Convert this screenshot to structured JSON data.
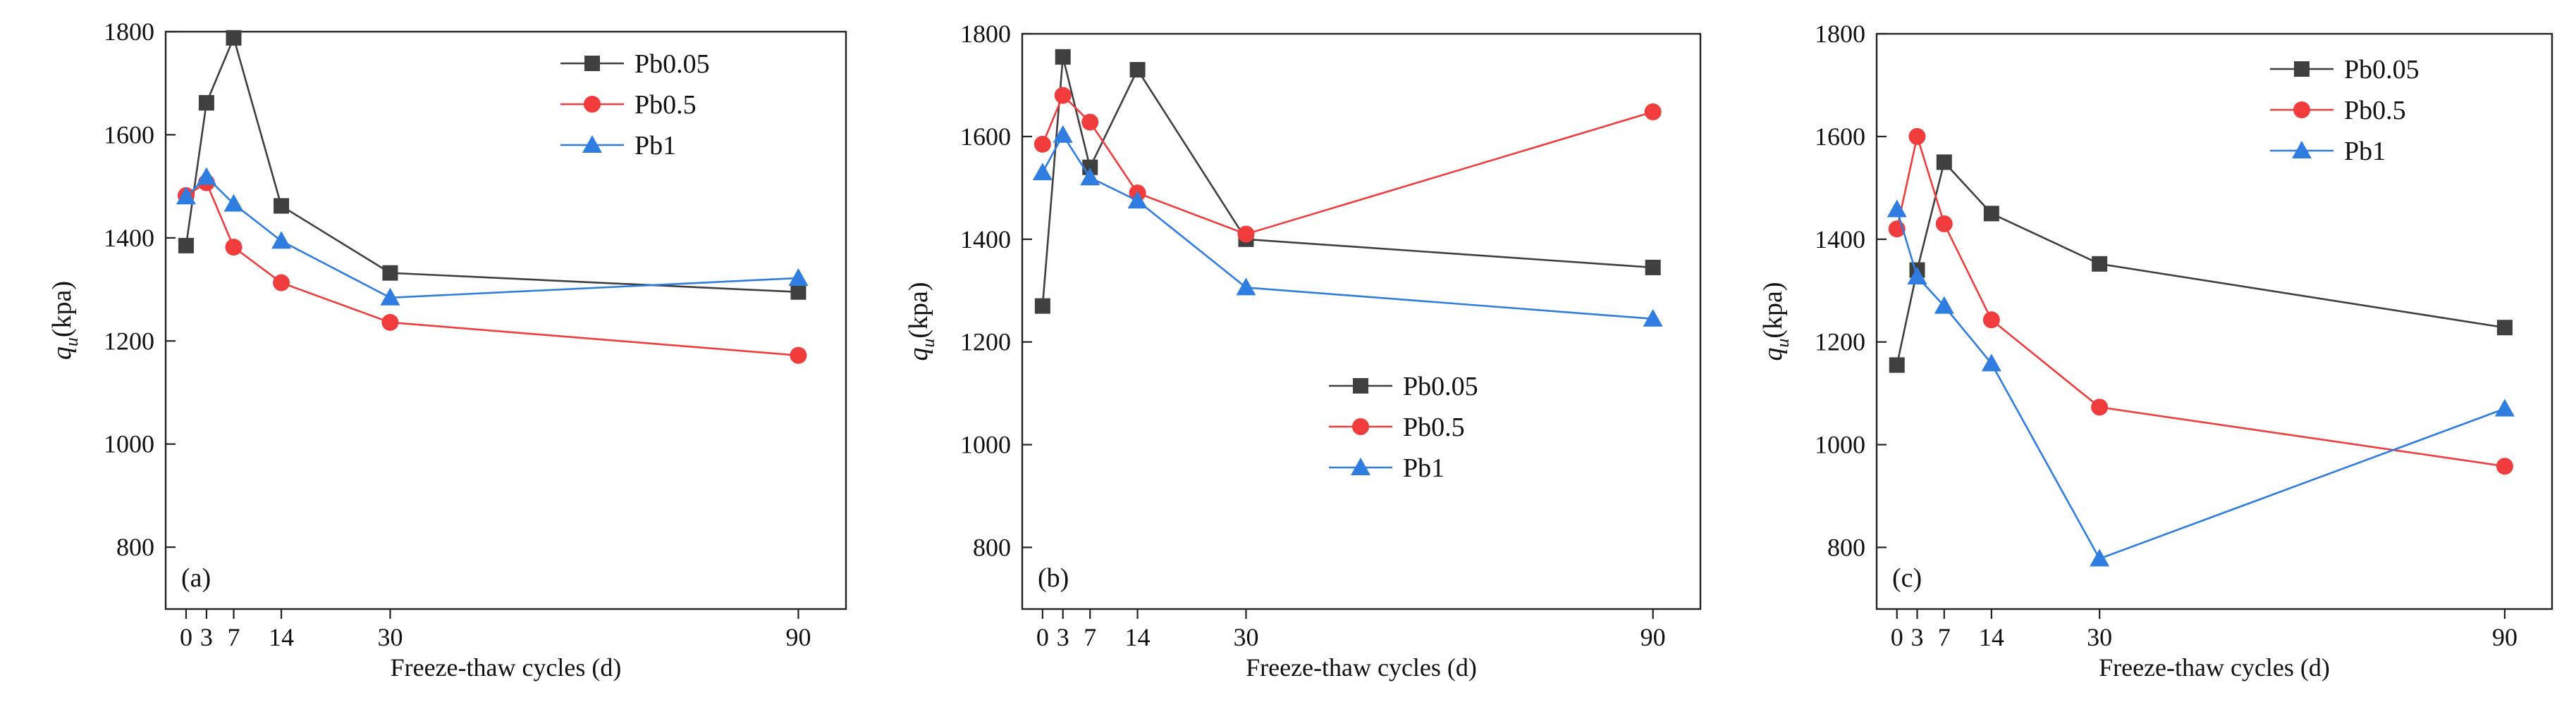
{
  "chart_data": [
    {
      "type": "line",
      "panel_label": "(a)",
      "xlabel": "Freeze-thaw cycles (d)",
      "ylabel_main": "q",
      "ylabel_sub": "u",
      "ylabel_unit": "(kpa)",
      "x": [
        0,
        3,
        7,
        14,
        30,
        90
      ],
      "x_ticks": [
        0,
        3,
        7,
        14,
        30,
        90
      ],
      "xlim": [
        -3,
        97
      ],
      "ylim": [
        680,
        1800
      ],
      "y_ticks": [
        800,
        1000,
        1200,
        1400,
        1600,
        1800
      ],
      "legend_position": "top-right",
      "series": [
        {
          "name": "Pb0.05",
          "color": "#3f3f3f",
          "marker": "square",
          "values": [
            1385,
            1662,
            1788,
            1462,
            1332,
            1295
          ]
        },
        {
          "name": "Pb0.5",
          "color": "#f03c3c",
          "marker": "circle",
          "values": [
            1482,
            1507,
            1382,
            1313,
            1236,
            1172
          ]
        },
        {
          "name": "Pb1",
          "color": "#2f7de1",
          "marker": "triangle",
          "values": [
            1480,
            1518,
            1466,
            1394,
            1284,
            1322
          ]
        }
      ]
    },
    {
      "type": "line",
      "panel_label": "(b)",
      "xlabel": "Freeze-thaw cycles (d)",
      "ylabel_main": "q",
      "ylabel_sub": "u",
      "ylabel_unit": "(kpa)",
      "x": [
        0,
        3,
        7,
        14,
        30,
        90
      ],
      "x_ticks": [
        0,
        3,
        7,
        14,
        30,
        90
      ],
      "xlim": [
        -3,
        97
      ],
      "ylim": [
        680,
        1800
      ],
      "y_ticks": [
        800,
        1000,
        1200,
        1400,
        1600,
        1800
      ],
      "legend_position": "center-right",
      "series": [
        {
          "name": "Pb0.05",
          "color": "#3f3f3f",
          "marker": "square",
          "values": [
            1270,
            1755,
            1540,
            1730,
            1400,
            1345
          ]
        },
        {
          "name": "Pb0.5",
          "color": "#f03c3c",
          "marker": "circle",
          "values": [
            1585,
            1680,
            1628,
            1490,
            1410,
            1648
          ]
        },
        {
          "name": "Pb1",
          "color": "#2f7de1",
          "marker": "triangle",
          "values": [
            1530,
            1603,
            1520,
            1475,
            1306,
            1245
          ]
        }
      ]
    },
    {
      "type": "line",
      "panel_label": "(c)",
      "xlabel": "Freeze-thaw cycles (d)",
      "ylabel_main": "q",
      "ylabel_sub": "u",
      "ylabel_unit": "(kpa)",
      "x": [
        0,
        3,
        7,
        14,
        30,
        90
      ],
      "x_ticks": [
        0,
        3,
        7,
        14,
        30,
        90
      ],
      "xlim": [
        -3,
        97
      ],
      "ylim": [
        680,
        1800
      ],
      "y_ticks": [
        800,
        1000,
        1200,
        1400,
        1600,
        1800
      ],
      "legend_position": "top-right",
      "series": [
        {
          "name": "Pb0.05",
          "color": "#3f3f3f",
          "marker": "square",
          "values": [
            1155,
            1340,
            1550,
            1450,
            1352,
            1228
          ]
        },
        {
          "name": "Pb0.5",
          "color": "#f03c3c",
          "marker": "circle",
          "values": [
            1420,
            1600,
            1430,
            1243,
            1073,
            958
          ]
        },
        {
          "name": "Pb1",
          "color": "#2f7de1",
          "marker": "triangle",
          "values": [
            1458,
            1327,
            1270,
            1158,
            778,
            1070
          ]
        }
      ]
    }
  ]
}
